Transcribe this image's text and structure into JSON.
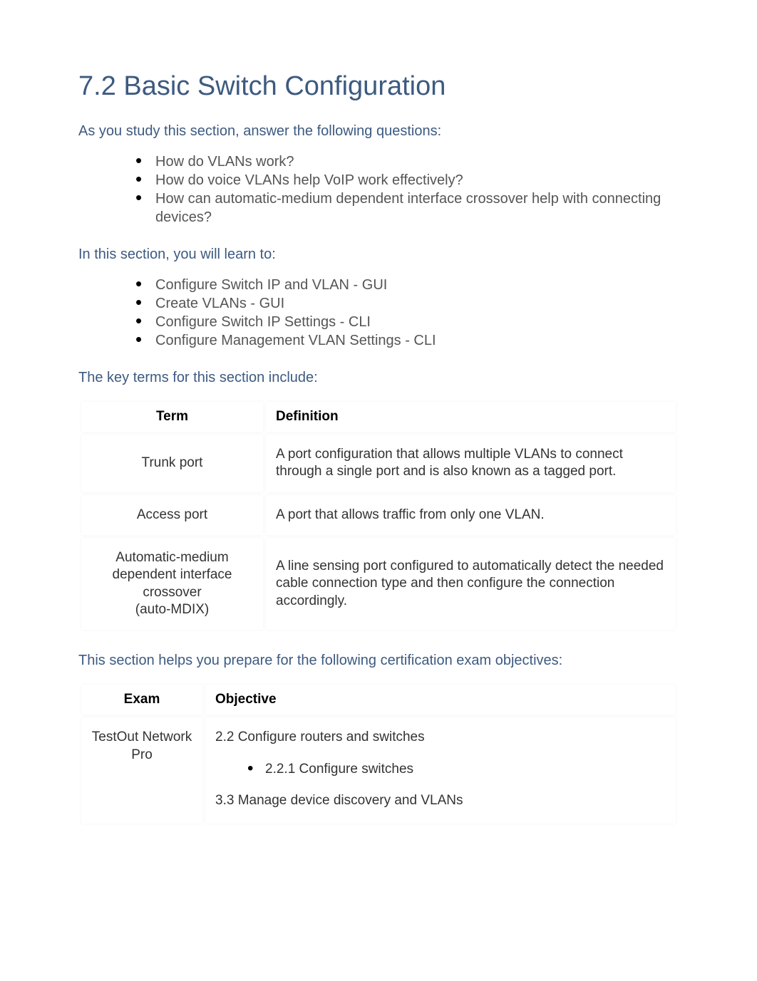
{
  "title": "7.2 Basic Switch Configuration",
  "colors": {
    "heading": "#3d5a80",
    "body_text": "#555555",
    "table_text": "#333333",
    "background": "#ffffff"
  },
  "typography": {
    "title_fontsize": 38,
    "body_fontsize": 20,
    "table_fontsize": 19
  },
  "intro_questions_lead": "As you study this section, answer the following questions:",
  "questions": [
    "How do VLANs work?",
    "How do voice VLANs help VoIP work effectively?",
    "How can automatic-medium dependent interface crossover help with connecting devices?"
  ],
  "learn_lead": "In this section, you will learn to:",
  "learn_items": [
    "Configure Switch IP and VLAN - GUI",
    "Create VLANs - GUI",
    "Configure Switch IP Settings - CLI",
    "Configure Management VLAN Settings - CLI"
  ],
  "key_terms_lead": "The key terms for this section include:",
  "terms_table": {
    "headers": [
      "Term",
      "Definition"
    ],
    "rows": [
      {
        "term": "Trunk port",
        "definition": "A port configuration that allows multiple VLANs to connect through a single port and is also known as a tagged port."
      },
      {
        "term": "Access port",
        "definition": "A port that allows traffic from only one VLAN."
      },
      {
        "term": "Automatic-medium dependent interface crossover\n(auto-MDIX)",
        "definition": "A line sensing port configured to automatically detect the needed cable connection type and then configure the connection accordingly."
      }
    ]
  },
  "objectives_lead": "This section helps you prepare for the following certification exam objectives:",
  "objectives_table": {
    "headers": [
      "Exam",
      "Objective"
    ],
    "rows": [
      {
        "exam": "TestOut Network Pro",
        "objective_main1": "2.2 Configure routers and switches",
        "objective_sub1": "2.2.1 Configure switches",
        "objective_main2": "3.3 Manage device discovery and VLANs"
      }
    ]
  }
}
